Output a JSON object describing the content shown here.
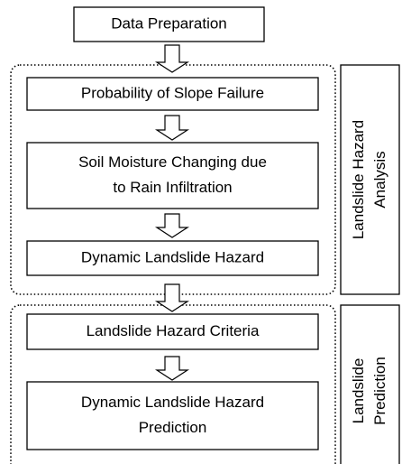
{
  "nodes": [
    {
      "lines": [
        "Data Preparation"
      ]
    },
    {
      "lines": [
        "Probability of Slope Failure"
      ]
    },
    {
      "lines": [
        "Soil Moisture Changing due",
        "to Rain Infiltration"
      ]
    },
    {
      "lines": [
        "Dynamic Landslide Hazard"
      ]
    },
    {
      "lines": [
        "Landslide Hazard Criteria"
      ]
    },
    {
      "lines": [
        "Dynamic Landslide Hazard",
        "Prediction"
      ]
    }
  ],
  "groups": [
    {
      "lines": [
        "Landslide Hazard",
        "Analysis"
      ]
    },
    {
      "lines": [
        "Landslide",
        "Prediction"
      ]
    }
  ]
}
